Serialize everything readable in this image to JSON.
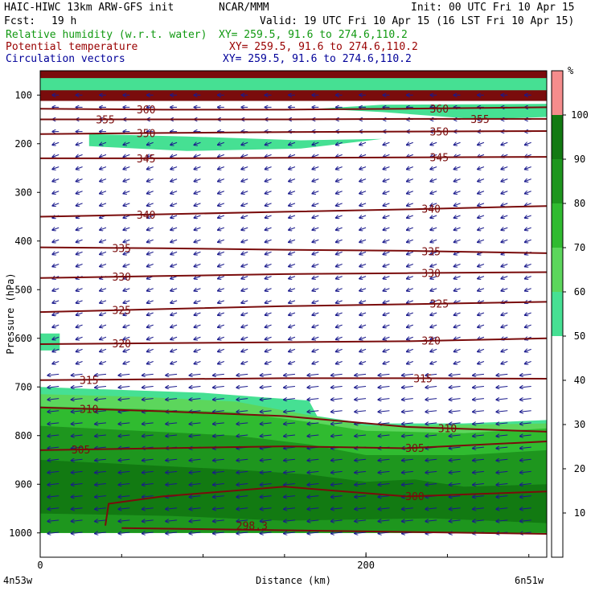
{
  "header": {
    "model_title": "HAIC-HIWC 13km ARW-GFS init",
    "org": "NCAR/MMM",
    "init": "Init: 00 UTC Fri 10 Apr 15",
    "fcst_label": "Fcst:",
    "fcst_value": "19 h",
    "valid": "Valid: 19 UTC Fri 10 Apr 15 (16 LST Fri 10 Apr 15)"
  },
  "fields": [
    {
      "name": "Relative humidity (w.r.t. water)",
      "xy": "XY= 259.5, 91.6 to 274.6,110.2",
      "color": "#119911"
    },
    {
      "name": "Potential temperature",
      "xy": "XY= 259.5, 91.6 to 274.6,110.2",
      "color": "#990000"
    },
    {
      "name": "Circulation vectors",
      "xy": "XY= 259.5, 91.6 to 274.6,110.2",
      "color": "#000099"
    }
  ],
  "colorbar": {
    "unit": "%",
    "ticks": [
      "100",
      "90",
      "80",
      "70",
      "60",
      "50",
      "40",
      "30",
      "20",
      "10"
    ],
    "levels": [
      {
        "from": 100,
        "to": 110,
        "color": "#f58c8c"
      },
      {
        "from": 90,
        "to": 100,
        "color": "#127a12"
      },
      {
        "from": 80,
        "to": 90,
        "color": "#1e961e"
      },
      {
        "from": 70,
        "to": 80,
        "color": "#30bb30"
      },
      {
        "from": 60,
        "to": 70,
        "color": "#5cd65c"
      },
      {
        "from": 50,
        "to": 60,
        "color": "#46e093"
      }
    ]
  },
  "chart_data": {
    "type": "contour_cross_section",
    "xlabel": "Distance (km)",
    "ylabel": "Pressure (hPa)",
    "x_ticks": [
      "0",
      "200"
    ],
    "x_endpoint_labels": {
      "left": "4n53w",
      "right": "6n51w"
    },
    "xlim": [
      0,
      311
    ],
    "ylim": [
      1050,
      50
    ],
    "y_ticks": [
      100,
      200,
      300,
      400,
      500,
      600,
      700,
      800,
      900,
      1000
    ],
    "theta_contours": [
      {
        "label": "360",
        "p": [
          128,
          130,
          130,
          128,
          125
        ]
      },
      {
        "label": "355",
        "p": [
          150,
          150,
          150,
          149,
          149
        ]
      },
      {
        "label": "350",
        "p": [
          180,
          178,
          176,
          175,
          174
        ]
      },
      {
        "label": "345",
        "p": [
          230,
          230,
          229,
          228,
          227
        ]
      },
      {
        "label": "340",
        "p": [
          350,
          345,
          340,
          335,
          328
        ]
      },
      {
        "label": "335",
        "p": [
          413,
          415,
          418,
          420,
          425
        ]
      },
      {
        "label": "330",
        "p": [
          476,
          472,
          468,
          466,
          464
        ]
      },
      {
        "label": "325",
        "p": [
          546,
          540,
          534,
          530,
          525
        ]
      },
      {
        "label": "320",
        "p": [
          612,
          610,
          608,
          606,
          600
        ]
      },
      {
        "label": "315",
        "p": [
          686,
          684,
          682,
          682,
          683
        ]
      },
      {
        "label": "310",
        "p": [
          742,
          750,
          760,
          782,
          792
        ]
      },
      {
        "label": "305",
        "p": [
          830,
          826,
          822,
          826,
          812
        ]
      },
      {
        "label": "300",
        "p": [
          null,
          925,
          905,
          925,
          915
        ]
      },
      {
        "label": "298.3",
        "p": [
          null,
          985,
          null,
          null,
          null
        ]
      }
    ],
    "theta_contour_x_km": [
      0,
      75,
      150,
      225,
      311
    ],
    "theta_label_positions_km": {
      "360": [
        65,
        245
      ],
      "355": [
        40,
        270
      ],
      "350": [
        65,
        245
      ],
      "345": [
        65,
        245
      ],
      "340": [
        65,
        240
      ],
      "335": [
        50,
        240
      ],
      "330": [
        50,
        240
      ],
      "325": [
        50,
        245
      ],
      "320": [
        50,
        240
      ],
      "315": [
        30,
        235
      ],
      "310": [
        30,
        250
      ],
      "305": [
        25,
        230
      ],
      "300": [
        230
      ],
      "298.3": [
        130
      ]
    },
    "rh_regions": [
      {
        "min_rh": 50,
        "boundary_km_p": [
          [
            0,
            700
          ],
          [
            40,
            705
          ],
          [
            100,
            712
          ],
          [
            140,
            722
          ],
          [
            165,
            728
          ],
          [
            170,
            760
          ],
          [
            200,
            775
          ],
          [
            260,
            775
          ],
          [
            311,
            768
          ],
          [
            311,
            1000
          ],
          [
            0,
            1000
          ]
        ]
      },
      {
        "min_rh": 60,
        "boundary_km_p": [
          [
            0,
            715
          ],
          [
            60,
            720
          ],
          [
            120,
            730
          ],
          [
            165,
            758
          ],
          [
            200,
            780
          ],
          [
            260,
            778
          ],
          [
            311,
            775
          ],
          [
            311,
            1000
          ],
          [
            0,
            1000
          ]
        ]
      },
      {
        "min_rh": 70,
        "boundary_km_p": [
          [
            0,
            740
          ],
          [
            60,
            745
          ],
          [
            120,
            752
          ],
          [
            165,
            772
          ],
          [
            200,
            790
          ],
          [
            260,
            795
          ],
          [
            311,
            785
          ],
          [
            311,
            1000
          ],
          [
            0,
            1000
          ]
        ]
      },
      {
        "min_rh": 80,
        "boundary_km_p": [
          [
            0,
            780
          ],
          [
            60,
            790
          ],
          [
            120,
            800
          ],
          [
            165,
            818
          ],
          [
            200,
            840
          ],
          [
            260,
            840
          ],
          [
            311,
            830
          ],
          [
            311,
            1000
          ],
          [
            0,
            1000
          ]
        ]
      },
      {
        "min_rh": 90,
        "boundary_km_p": [
          [
            0,
            850
          ],
          [
            60,
            860
          ],
          [
            120,
            870
          ],
          [
            165,
            880
          ],
          [
            200,
            895
          ],
          [
            230,
            890
          ],
          [
            260,
            905
          ],
          [
            311,
            900
          ],
          [
            311,
            980
          ],
          [
            240,
            970
          ],
          [
            150,
            975
          ],
          [
            80,
            965
          ],
          [
            0,
            960
          ]
        ]
      },
      {
        "min_rh": 50,
        "boundary_km_p": [
          [
            0,
            65
          ],
          [
            311,
            65
          ],
          [
            311,
            90
          ],
          [
            0,
            90
          ]
        ]
      },
      {
        "min_rh": 50,
        "boundary_km_p": [
          [
            30,
            180
          ],
          [
            90,
            185
          ],
          [
            160,
            193
          ],
          [
            210,
            190
          ],
          [
            160,
            210
          ],
          [
            90,
            215
          ],
          [
            30,
            205
          ]
        ]
      },
      {
        "min_rh": 50,
        "boundary_km_p": [
          [
            170,
            128
          ],
          [
            210,
            120
          ],
          [
            311,
            118
          ],
          [
            311,
            145
          ],
          [
            270,
            150
          ],
          [
            210,
            135
          ]
        ]
      },
      {
        "min_rh": 50,
        "boundary_km_p": [
          [
            0,
            590
          ],
          [
            12,
            590
          ],
          [
            12,
            625
          ],
          [
            0,
            625
          ]
        ]
      }
    ]
  }
}
